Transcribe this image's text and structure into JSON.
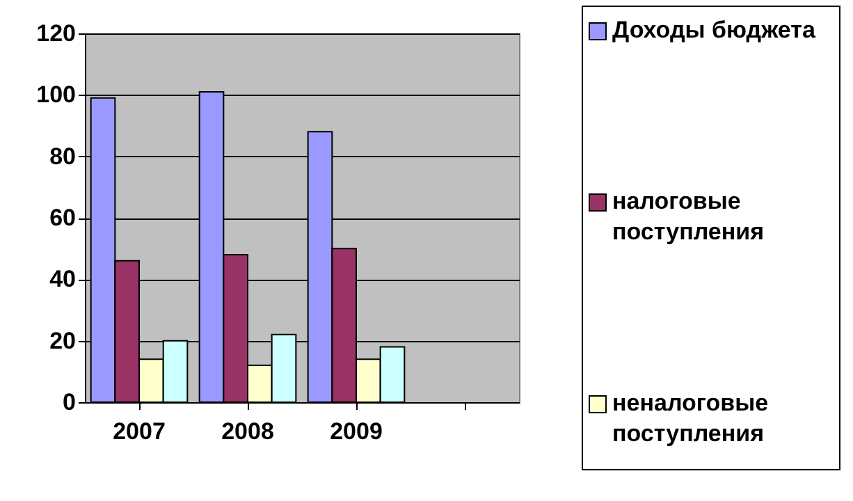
{
  "chart_data": {
    "type": "bar",
    "categories": [
      "2007",
      "2008",
      "2009",
      null
    ],
    "series": [
      {
        "name": "Доходы бюджета",
        "color": "#9999ff",
        "values": [
          99,
          101,
          88,
          null
        ]
      },
      {
        "name": "налоговые поступления",
        "color": "#993366",
        "values": [
          46,
          48,
          50,
          null
        ]
      },
      {
        "name": "неналоговые поступления",
        "color": "#ffffcc",
        "values": [
          14,
          12,
          14,
          null
        ]
      },
      {
        "color": "#ccffff",
        "values": [
          20,
          22,
          18,
          null
        ]
      }
    ],
    "ylim": [
      0,
      120
    ],
    "yticks": [
      0,
      20,
      40,
      60,
      80,
      100,
      120
    ],
    "grid": "y",
    "legend": "right"
  }
}
